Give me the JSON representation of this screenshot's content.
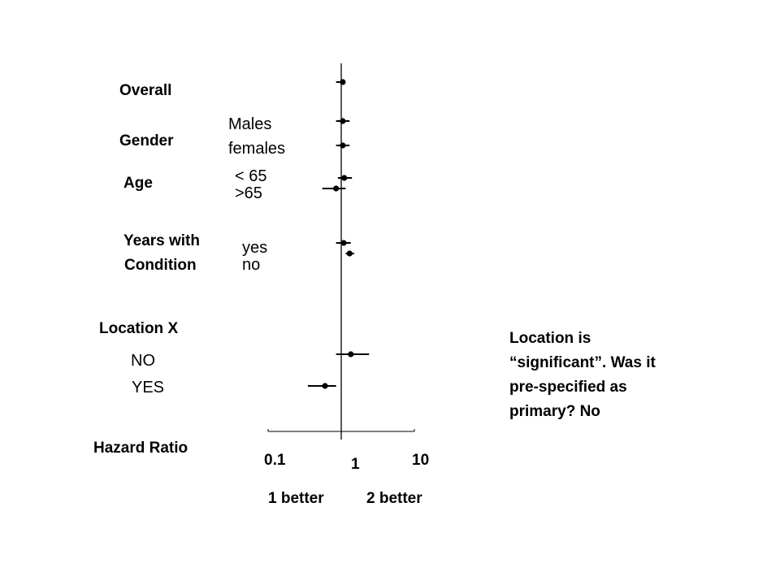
{
  "labels": {
    "overall": "Overall",
    "gender": "Gender",
    "males": "Males",
    "females": "females",
    "age": "Age",
    "age_lt65": "< 65",
    "age_gt65": ">65",
    "years_with": "Years with",
    "condition": "Condition",
    "yes": "yes",
    "no": "no",
    "location_x": "Location X",
    "loc_no": "NO",
    "loc_yes": "YES",
    "hazard_ratio": "Hazard Ratio",
    "tick_01": "0.1",
    "tick_1": "1",
    "tick_10": "10",
    "better1": "1 better",
    "better2": "2 better"
  },
  "note": "Location is “significant”. Was it pre-specified as primary? No",
  "chart_data": {
    "type": "scatter",
    "xlabel": "Hazard Ratio",
    "x_scale": "log",
    "xlim": [
      0.1,
      10
    ],
    "xticks": [
      "0.1",
      "1",
      "10"
    ],
    "direction_labels": [
      "1 better",
      "2 better"
    ],
    "reference_line": 1,
    "rows": [
      {
        "group": "Overall",
        "subgroup": "",
        "hr": 1.05,
        "ci": [
          0.85,
          1.12
        ]
      },
      {
        "group": "Gender",
        "subgroup": "Males",
        "hr": 1.05,
        "ci": [
          0.85,
          1.3
        ]
      },
      {
        "group": "Gender",
        "subgroup": "females",
        "hr": 1.05,
        "ci": [
          0.85,
          1.3
        ]
      },
      {
        "group": "Age",
        "subgroup": "< 65",
        "hr": 1.1,
        "ci": [
          0.9,
          1.4
        ]
      },
      {
        "group": "Age",
        "subgroup": ">65",
        "hr": 0.85,
        "ci": [
          0.55,
          1.15
        ]
      },
      {
        "group": "Years with Condition",
        "subgroup": "yes",
        "hr": 1.08,
        "ci": [
          0.85,
          1.35
        ]
      },
      {
        "group": "Years with Condition",
        "subgroup": "no",
        "hr": 1.3,
        "ci": [
          1.15,
          1.5
        ]
      },
      {
        "group": "Location X",
        "subgroup": "NO",
        "hr": 1.35,
        "ci": [
          0.85,
          2.4
        ]
      },
      {
        "group": "Location X",
        "subgroup": "YES",
        "hr": 0.6,
        "ci": [
          0.35,
          0.85
        ]
      }
    ]
  }
}
